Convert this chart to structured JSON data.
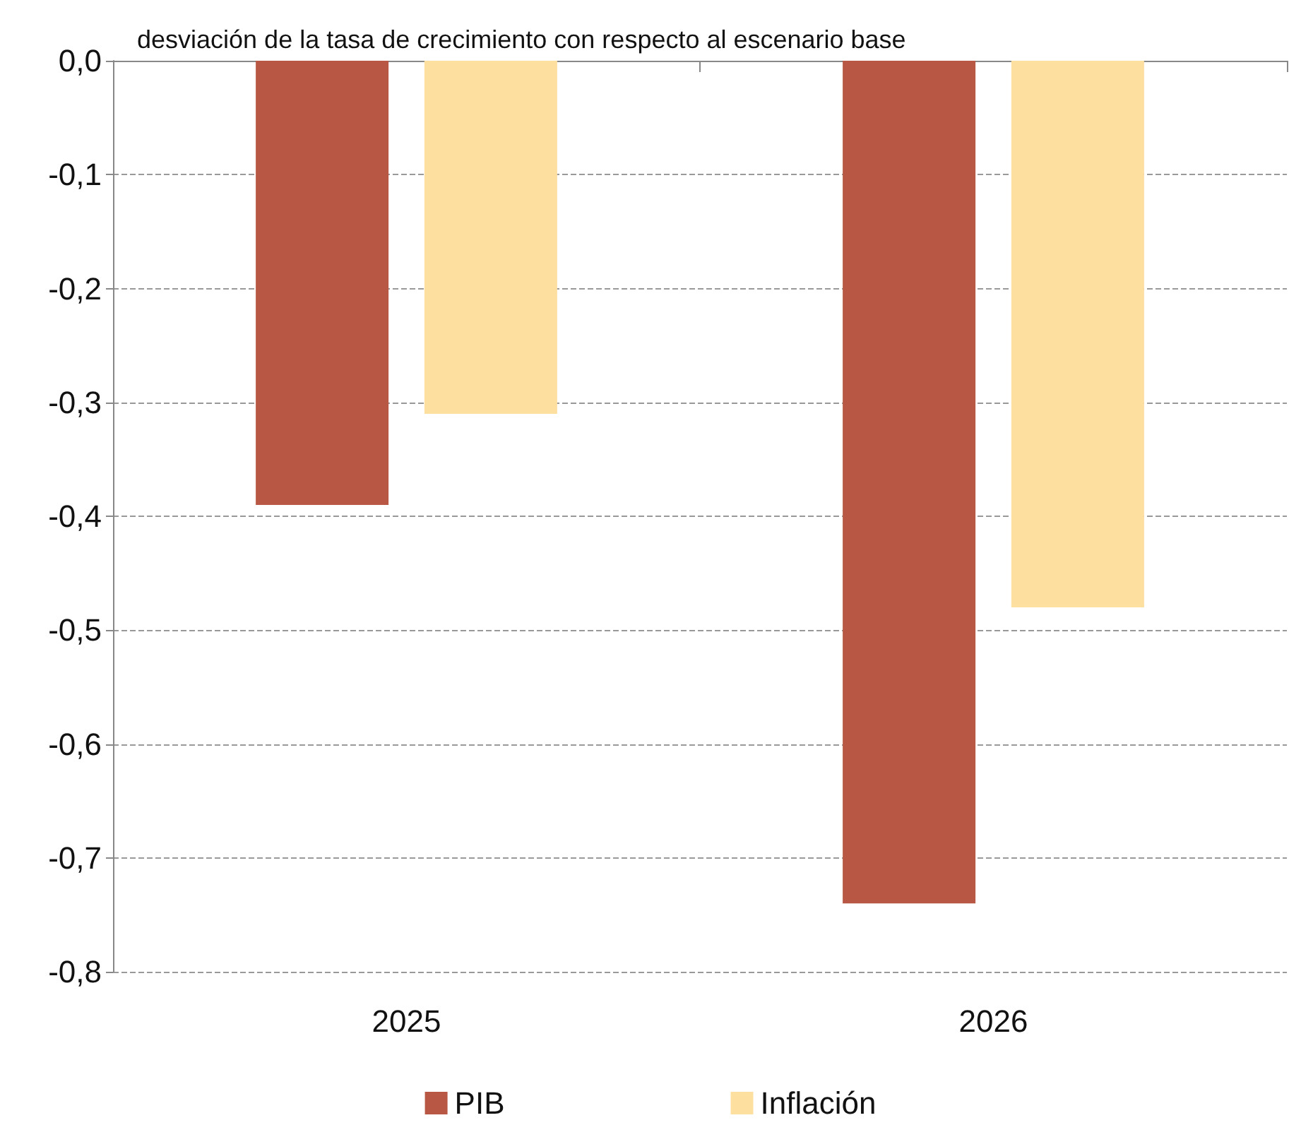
{
  "chart_data": {
    "type": "bar",
    "title": "desviación de la tasa de crecimiento con respecto al escenario base",
    "categories": [
      "2025",
      "2026"
    ],
    "series": [
      {
        "name": "PIB",
        "color": "#b85744",
        "values": [
          -0.39,
          -0.74
        ]
      },
      {
        "name": "Inflación",
        "color": "#fde0a0",
        "values": [
          -0.31,
          -0.48
        ]
      }
    ],
    "ylim": [
      -0.8,
      0
    ],
    "yticks": [
      {
        "value": -0.8,
        "label": "-0,8"
      },
      {
        "value": -0.7,
        "label": "-0,7"
      },
      {
        "value": -0.6,
        "label": "-0,6"
      },
      {
        "value": -0.5,
        "label": "-0,5"
      },
      {
        "value": -0.4,
        "label": "-0,4"
      },
      {
        "value": -0.3,
        "label": "-0,3"
      },
      {
        "value": -0.2,
        "label": "-0,2"
      },
      {
        "value": -0.1,
        "label": "-0,1"
      },
      {
        "value": 0,
        "label": "0,0"
      }
    ],
    "grid": "y",
    "legend": "bottom"
  }
}
